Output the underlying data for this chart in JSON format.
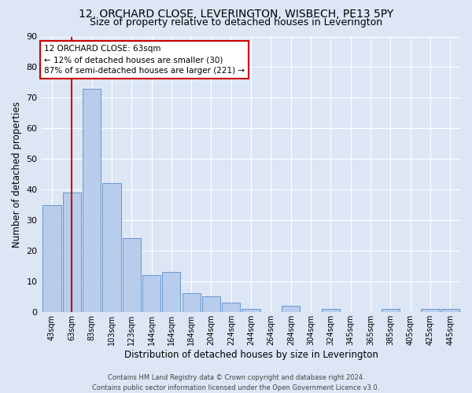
{
  "title": "12, ORCHARD CLOSE, LEVERINGTON, WISBECH, PE13 5PY",
  "subtitle": "Size of property relative to detached houses in Leverington",
  "xlabel": "Distribution of detached houses by size in Leverington",
  "ylabel": "Number of detached properties",
  "categories": [
    "43sqm",
    "63sqm",
    "83sqm",
    "103sqm",
    "123sqm",
    "144sqm",
    "164sqm",
    "184sqm",
    "204sqm",
    "224sqm",
    "244sqm",
    "264sqm",
    "284sqm",
    "304sqm",
    "324sqm",
    "345sqm",
    "365sqm",
    "385sqm",
    "405sqm",
    "425sqm",
    "445sqm"
  ],
  "values": [
    35,
    39,
    73,
    42,
    24,
    12,
    13,
    6,
    5,
    3,
    1,
    0,
    2,
    0,
    1,
    0,
    0,
    1,
    0,
    1,
    1
  ],
  "bar_color": "#b8ccec",
  "bar_edge_color": "#6699cc",
  "bg_color": "#dce6f5",
  "grid_color": "#ffffff",
  "vline_x": 1,
  "vline_color": "#cc0000",
  "annotation_text": "12 ORCHARD CLOSE: 63sqm\n← 12% of detached houses are smaller (30)\n87% of semi-detached houses are larger (221) →",
  "annotation_box_color": "#ffffff",
  "annotation_box_edge": "#cc0000",
  "ylim": [
    0,
    90
  ],
  "yticks": [
    0,
    10,
    20,
    30,
    40,
    50,
    60,
    70,
    80,
    90
  ],
  "title_fontsize": 10,
  "subtitle_fontsize": 9,
  "footer_text": "Contains HM Land Registry data © Crown copyright and database right 2024.\nContains public sector information licensed under the Open Government Licence v3.0."
}
